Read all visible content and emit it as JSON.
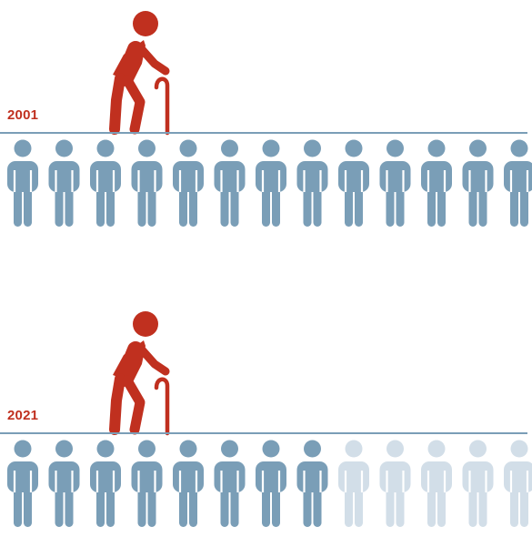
{
  "colors": {
    "elder": "#c0301f",
    "worker": "#7a9eb7",
    "worker_faded": "#d2dee8",
    "baseline": "#7a9eb7",
    "year_label": "#c0301f"
  },
  "icons": {
    "elder": "elderly-person-with-cane-icon",
    "worker": "person-icon"
  },
  "rows": [
    {
      "year": "2001",
      "elders": 1,
      "workers_active": 13,
      "workers_total": 13
    },
    {
      "year": "2021",
      "elders": 1,
      "workers_active": 8,
      "workers_total": 13
    }
  ]
}
